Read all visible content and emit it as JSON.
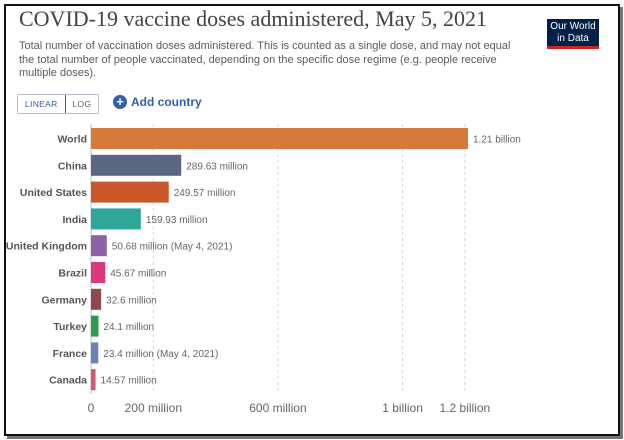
{
  "header": {
    "title": "COVID-19 vaccine doses administered, May 5, 2021",
    "subtitle": "Total number of vaccination doses administered. This is counted as a single dose, and may not equal the total number of people vaccinated, depending on the specific dose regime (e.g. people receive multiple doses).",
    "logo_line1": "Our World",
    "logo_line2": "in Data"
  },
  "controls": {
    "linear_label": "LINEAR",
    "log_label": "LOG",
    "add_country_label": "Add country",
    "add_icon": "plus-circle-icon"
  },
  "chart_data": {
    "type": "bar",
    "orientation": "horizontal",
    "categories": [
      "World",
      "China",
      "United States",
      "India",
      "United Kingdom",
      "Brazil",
      "Germany",
      "Turkey",
      "France",
      "Canada"
    ],
    "values": [
      1210000000,
      289630000,
      249570000,
      159930000,
      50680000,
      45670000,
      32600000,
      24100000,
      23400000,
      14570000
    ],
    "value_labels": [
      "1.21 billion",
      "289.63 million",
      "249.57 million",
      "159.93 million",
      "50.68 million (May 4, 2021)",
      "45.67 million",
      "32.6 million",
      "24.1 million",
      "23.4 million (May 4, 2021)",
      "14.57 million"
    ],
    "colors": [
      "#d57a3a",
      "#5b6680",
      "#c9592b",
      "#2fa69a",
      "#8d63a8",
      "#d9387c",
      "#8e4a4a",
      "#2f9a52",
      "#6684b5",
      "#c95a72"
    ],
    "x_ticks": [
      0,
      200000000,
      600000000,
      1000000000,
      1200000000
    ],
    "x_tick_labels": [
      "0",
      "200 million",
      "600 million",
      "1 billion",
      "1.2 billion"
    ],
    "xlim": [
      0,
      1210000000
    ],
    "grid": true
  }
}
